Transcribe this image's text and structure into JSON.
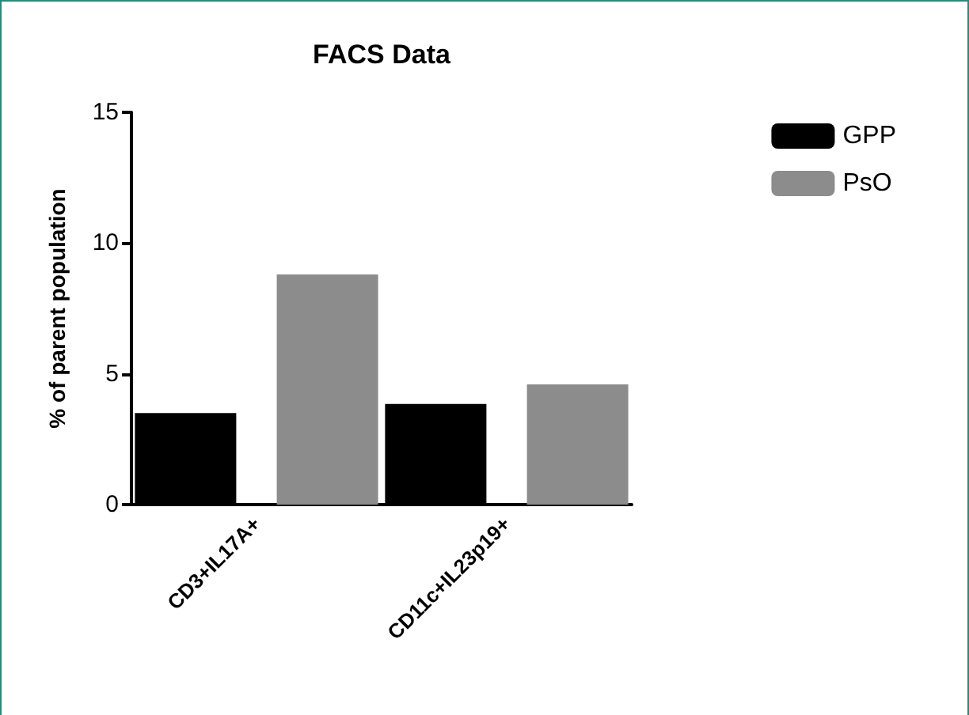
{
  "chart_data": {
    "type": "bar",
    "title": "FACS Data",
    "ylabel": "% of parent population",
    "categories": [
      "CD3+IL17A+",
      "CD11c+IL23p19+"
    ],
    "series": [
      {
        "name": "GPP",
        "color": "#000000",
        "values": [
          3.5,
          3.85
        ]
      },
      {
        "name": "PsO",
        "color": "#8c8c8c",
        "values": [
          8.8,
          4.6
        ]
      }
    ],
    "ylim": [
      0,
      15
    ],
    "yticks": [
      0,
      5,
      10,
      15
    ],
    "grid": false,
    "legend": "top right"
  }
}
